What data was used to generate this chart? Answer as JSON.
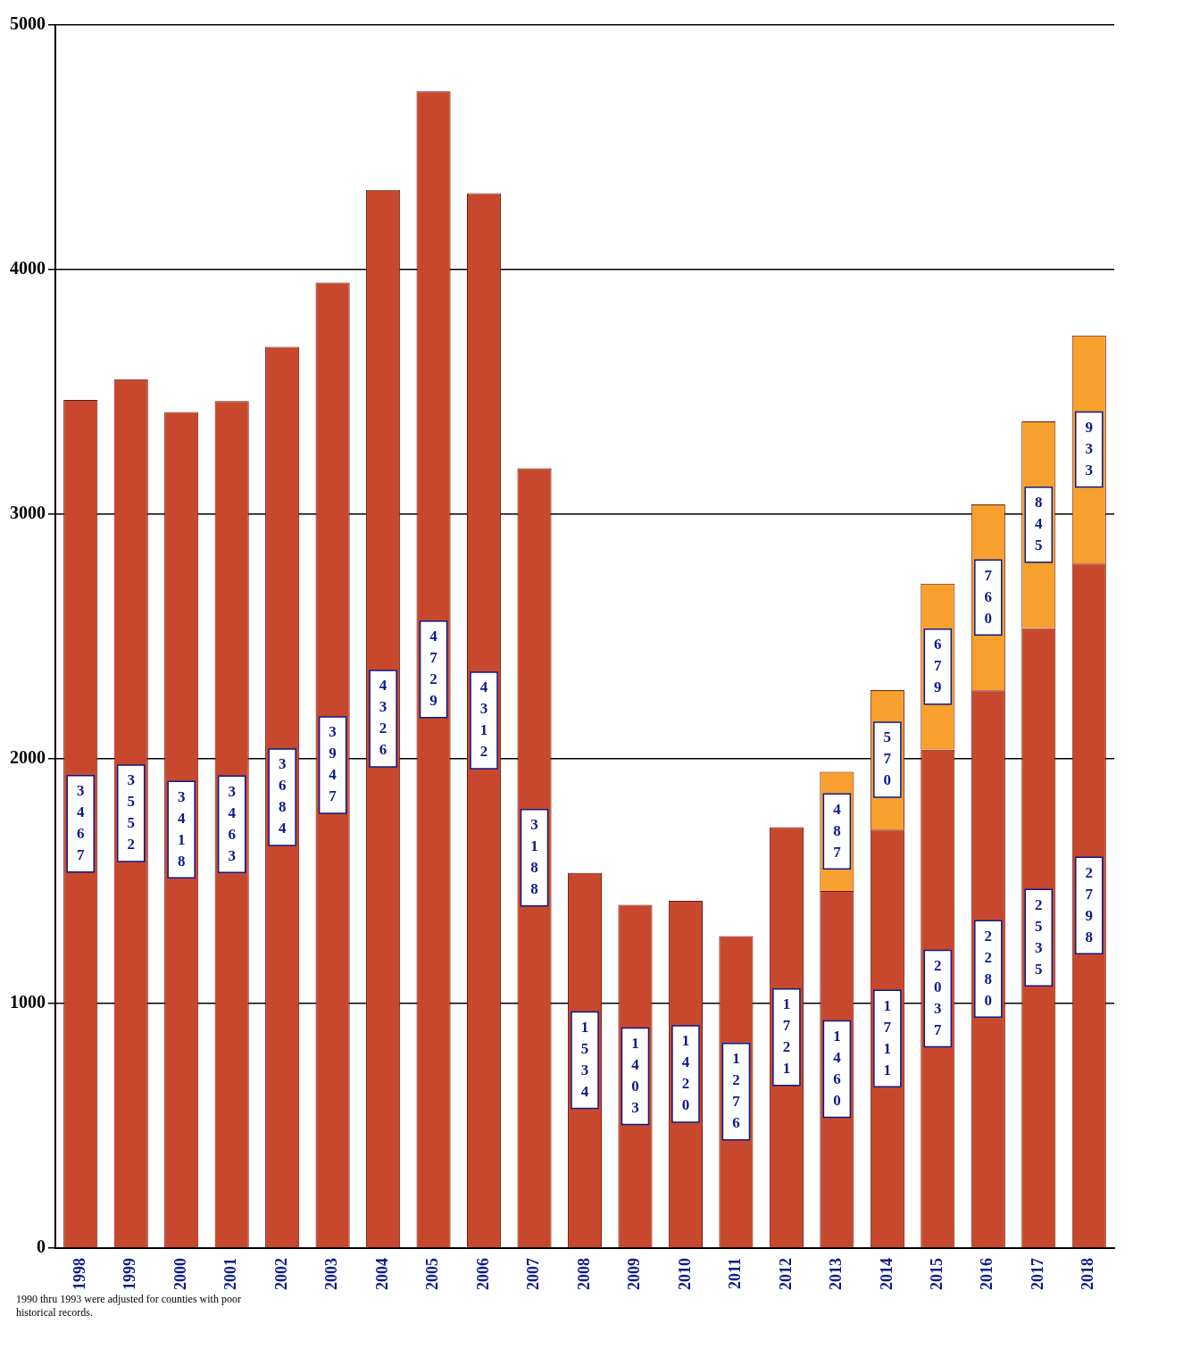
{
  "chart_data": {
    "type": "bar",
    "stacked": true,
    "categories": [
      "1998",
      "1999",
      "2000",
      "2001",
      "2002",
      "2003",
      "2004",
      "2005",
      "2006",
      "2007",
      "2008",
      "2009",
      "2010",
      "2011",
      "2012",
      "2013",
      "2014",
      "2015",
      "2016",
      "2017",
      "2018"
    ],
    "series": [
      {
        "color": "#c8482e",
        "values": [
          3467,
          3552,
          3418,
          3463,
          3684,
          3947,
          4326,
          4729,
          4312,
          3188,
          1534,
          1403,
          1420,
          1276,
          1721,
          1460,
          1711,
          2037,
          2280,
          2535,
          2798
        ]
      },
      {
        "color": "#f7a02e",
        "values": [
          null,
          null,
          null,
          null,
          null,
          null,
          null,
          null,
          null,
          null,
          null,
          null,
          null,
          null,
          null,
          487,
          570,
          679,
          760,
          845,
          933
        ]
      }
    ],
    "ylim": [
      0,
      5000
    ],
    "yticks": [
      0,
      1000,
      2000,
      3000,
      4000,
      5000
    ],
    "grid": "y",
    "legend": false,
    "data_labels": true,
    "annotations": [
      "1990 thru 1993 were adjusted for counties with poor historical records."
    ]
  }
}
